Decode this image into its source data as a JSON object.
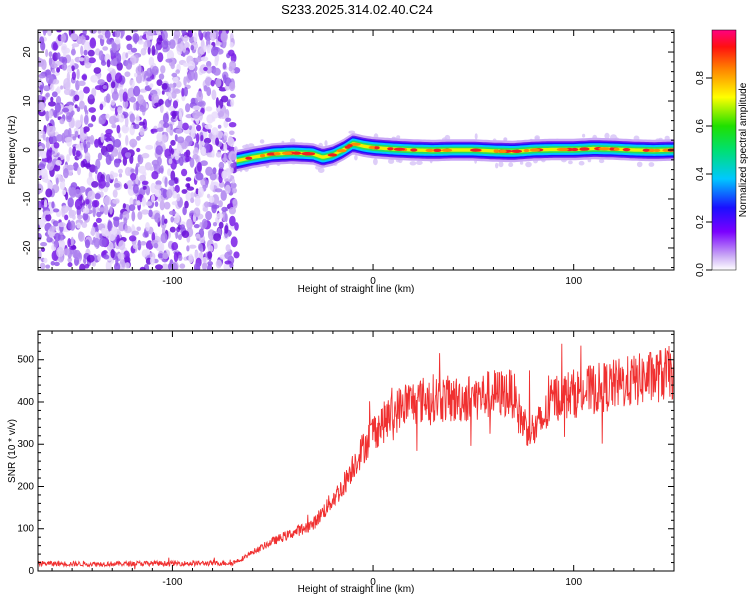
{
  "title": "S233.2025.314.02.40.C24",
  "chart_data": [
    {
      "type": "heatmap",
      "title": "S233.2025.314.02.40.C24",
      "xlabel": "Height of straight line (km)",
      "ylabel": "Frequency (Hz)",
      "xlim": [
        -167,
        150
      ],
      "ylim": [
        -24.5,
        24.5
      ],
      "xticks": [
        -100,
        0,
        100
      ],
      "xtick_labels": [
        "-100",
        "0",
        "100"
      ],
      "yticks": [
        -20,
        -10,
        0,
        10,
        20
      ],
      "ytick_labels": [
        "-20",
        "-10",
        "0",
        "10",
        "20"
      ],
      "noise_region_x": [
        -167,
        -68
      ],
      "signal_ridge": {
        "x": [
          -68,
          -60,
          -50,
          -40,
          -30,
          -25,
          -20,
          -15,
          -10,
          -5,
          0,
          10,
          20,
          30,
          40,
          50,
          60,
          70,
          80,
          90,
          100,
          110,
          120,
          130,
          140,
          150
        ],
        "y": [
          -2.2,
          -1.5,
          -0.8,
          -0.6,
          -0.8,
          -1.5,
          -1.0,
          0.0,
          1.3,
          0.8,
          0.5,
          0.2,
          0.0,
          -0.1,
          0.0,
          0.0,
          -0.2,
          -0.3,
          0.0,
          0.1,
          0.1,
          0.3,
          0.2,
          0.0,
          -0.1,
          0.0
        ]
      },
      "colorbar": {
        "label": "Normalized spectral amplitude",
        "range": [
          0.0,
          1.0
        ],
        "ticks": [
          0.0,
          0.2,
          0.4,
          0.6,
          0.8
        ],
        "tick_labels": [
          "0.0",
          "0.2",
          "0.4",
          "0.6",
          "0.8"
        ]
      }
    },
    {
      "type": "line",
      "xlabel": "Height of straight line (km)",
      "ylabel": "SNR (10 * v/v)",
      "xlim": [
        -167,
        150
      ],
      "ylim": [
        0,
        568
      ],
      "xticks": [
        -100,
        0,
        100
      ],
      "xtick_labels": [
        "-100",
        "0",
        "100"
      ],
      "yticks": [
        0,
        100,
        200,
        300,
        400,
        500
      ],
      "ytick_labels": [
        "0",
        "100",
        "200",
        "300",
        "400",
        "500"
      ],
      "series": [
        {
          "name": "SNR",
          "color": "#f03030",
          "x": [
            -167,
            -150,
            -130,
            -110,
            -90,
            -70,
            -65,
            -60,
            -50,
            -40,
            -30,
            -20,
            -15,
            -10,
            -5,
            0,
            5,
            10,
            15,
            20,
            30,
            40,
            50,
            60,
            70,
            72,
            75,
            80,
            85,
            90,
            100,
            110,
            120,
            130,
            140,
            150
          ],
          "values": [
            18,
            17,
            17,
            18,
            18,
            19,
            30,
            45,
            70,
            90,
            110,
            170,
            200,
            250,
            290,
            330,
            350,
            370,
            395,
            400,
            410,
            405,
            410,
            420,
            420,
            380,
            350,
            330,
            360,
            410,
            420,
            430,
            440,
            450,
            460,
            470
          ]
        }
      ]
    }
  ],
  "colors": {
    "noise_dark": "#7a1ee6",
    "noise_light": "#d9c4f7",
    "line": "#f03030"
  }
}
